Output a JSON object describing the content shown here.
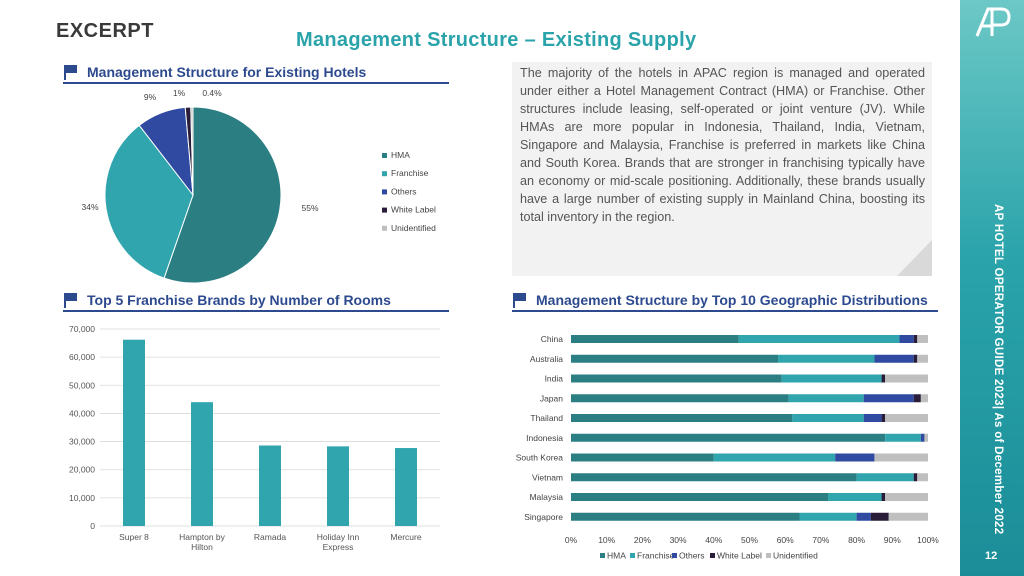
{
  "header": {
    "excerpt": "EXCERPT",
    "title": "Management Structure – Existing Supply"
  },
  "sidebar": {
    "vertical_text": "AP HOTEL OPERATOR GUIDE 2023| As of December 2022",
    "page_number": "12"
  },
  "colors": {
    "HMA": "#2b7f83",
    "Franchise": "#31a5ad",
    "Others": "#2f4aa0",
    "White Label": "#2a1d3a",
    "Unidentified": "#bfbfbf",
    "section_blue": "#2d4a8f",
    "title_teal": "#2aa3aa"
  },
  "text_block": "The majority of the hotels in APAC region is managed and operated under either a Hotel Management Contract (HMA) or Franchise. Other structures include leasing, self-operated or joint venture (JV). While HMAs are more popular in Indonesia, Thailand, India, Vietnam, Singapore and Malaysia, Franchise is preferred in markets like China and South Korea. Brands that are stronger in franchising typically have an economy or mid-scale positioning. Additionally, these brands usually have a large number of existing supply in Mainland China, boosting its total inventory in the region.",
  "sections": {
    "pie_title": "Management Structure for Existing Hotels",
    "bar_title": "Top 5 Franchise Brands by Number of Rooms",
    "stack_title": "Management Structure by Top 10 Geographic Distributions"
  },
  "chart_data": [
    {
      "type": "pie",
      "title": "Management Structure for Existing Hotels",
      "categories": [
        "HMA",
        "Franchise",
        "Others",
        "White Label",
        "Unidentified"
      ],
      "values": [
        55,
        34,
        9,
        1,
        0.4
      ],
      "labels": [
        "55%",
        "34%",
        "9%",
        "1%",
        "0.4%"
      ],
      "legend": "right"
    },
    {
      "type": "bar",
      "title": "Top 5 Franchise Brands by Number of Rooms",
      "categories": [
        "Super 8",
        "Hampton by Hilton",
        "Ramada",
        "Holiday Inn Express",
        "Mercure"
      ],
      "category_lines": [
        [
          "Super 8"
        ],
        [
          "Hampton by",
          "Hilton"
        ],
        [
          "Ramada"
        ],
        [
          "Holiday Inn",
          "Express"
        ],
        [
          "Mercure"
        ]
      ],
      "values": [
        66200,
        44000,
        28600,
        28300,
        27700
      ],
      "ylim": [
        0,
        70000
      ],
      "yticks": [
        0,
        10000,
        20000,
        30000,
        40000,
        50000,
        60000,
        70000
      ],
      "ytick_labels": [
        "0",
        "10,000",
        "20,000",
        "30,000",
        "40,000",
        "50,000",
        "60,000",
        "70,000"
      ],
      "grid": true
    },
    {
      "type": "bar",
      "orientation": "horizontal-stacked-100",
      "title": "Management Structure by Top 10 Geographic Distributions",
      "categories": [
        "China",
        "Australia",
        "India",
        "Japan",
        "Thailand",
        "Indonesia",
        "South Korea",
        "Vietnam",
        "Malaysia",
        "Singapore"
      ],
      "series": [
        {
          "name": "HMA",
          "values": [
            47,
            58,
            59,
            61,
            62,
            88,
            40,
            80,
            72,
            64
          ]
        },
        {
          "name": "Franchise",
          "values": [
            45,
            27,
            28,
            21,
            20,
            10,
            34,
            16,
            15,
            16
          ]
        },
        {
          "name": "Others",
          "values": [
            4,
            11,
            0,
            14,
            5,
            1,
            11,
            0,
            0,
            4
          ]
        },
        {
          "name": "White Label",
          "values": [
            1,
            1,
            1,
            2,
            1,
            0,
            0,
            1,
            1,
            5
          ]
        },
        {
          "name": "Unidentified",
          "values": [
            3,
            3,
            12,
            2,
            12,
            1,
            15,
            3,
            12,
            11
          ]
        }
      ],
      "xlim": [
        0,
        100
      ],
      "xticks": [
        "0%",
        "10%",
        "20%",
        "30%",
        "40%",
        "50%",
        "60%",
        "70%",
        "80%",
        "90%",
        "100%"
      ],
      "legend": "bottom"
    }
  ]
}
